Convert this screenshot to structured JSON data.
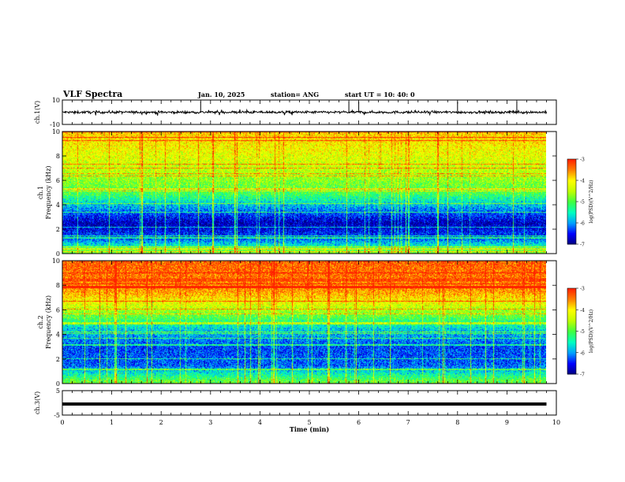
{
  "header": {
    "title": "VLF Spectra",
    "date": "Jan. 10, 2025",
    "station": "station= ANG",
    "start": "start  UT  =   10: 40: 0"
  },
  "colors": {
    "colorscale": [
      "#000080",
      "#0000ff",
      "#00a0ff",
      "#00ffc0",
      "#40ff40",
      "#c0ff00",
      "#ffff00",
      "#ff8000",
      "#ff2000",
      "#ffffff"
    ]
  },
  "chart_data": [
    {
      "type": "line",
      "id": "ch1-waveform",
      "ylabel": "ch.1(V)",
      "yticks": [
        "10",
        "-10"
      ],
      "ylim": [
        -10,
        10
      ],
      "xlim": [
        0,
        10
      ],
      "series": [
        {
          "x": [
            0,
            9.8
          ],
          "y": [
            0,
            0
          ]
        }
      ],
      "note_spikes_x": [
        2.8,
        5.8,
        6.0,
        8.0,
        9.2
      ]
    },
    {
      "type": "heatmap",
      "id": "ch1-spectrogram",
      "ylabel": "ch.1\nFrequency (kHz)",
      "yticks": [
        "0",
        "2",
        "4",
        "6",
        "8",
        "10"
      ],
      "ylim": [
        0,
        10
      ],
      "xlim": [
        0,
        10
      ],
      "data_xmax": 9.8,
      "colorbar": {
        "label": "log(PSD)(V^2/Hz)",
        "ticks": [
          "-3",
          "-4",
          "-5",
          "-6",
          "-7"
        ],
        "range": [
          -7,
          -3
        ]
      },
      "band_levels_kHz": [
        {
          "f": 0.25,
          "v": -4.8
        },
        {
          "f": 0.75,
          "v": -5.6
        },
        {
          "f": 1.25,
          "v": -6.2
        },
        {
          "f": 2.5,
          "v": -6.8
        },
        {
          "f": 4.0,
          "v": -5.8
        },
        {
          "f": 5.0,
          "v": -5.0
        },
        {
          "f": 6.0,
          "v": -4.7
        },
        {
          "f": 7.0,
          "v": -4.4
        },
        {
          "f": 8.0,
          "v": -4.2
        },
        {
          "f": 9.0,
          "v": -4.0
        },
        {
          "f": 10.0,
          "v": -3.8
        }
      ]
    },
    {
      "type": "heatmap",
      "id": "ch2-spectrogram",
      "ylabel": "ch.2\nFrequency (kHz)",
      "yticks": [
        "0",
        "2",
        "4",
        "6",
        "8",
        "10"
      ],
      "ylim": [
        0,
        10
      ],
      "xlim": [
        0,
        10
      ],
      "data_xmax": 9.8,
      "colorbar": {
        "label": "log(PSD)(V^2/Hz)",
        "ticks": [
          "-3",
          "-4",
          "-5",
          "-6",
          "-7"
        ],
        "range": [
          -7,
          -3
        ]
      },
      "band_levels_kHz": [
        {
          "f": 0.25,
          "v": -4.9
        },
        {
          "f": 0.75,
          "v": -5.4
        },
        {
          "f": 1.5,
          "v": -6.2
        },
        {
          "f": 3.0,
          "v": -6.3
        },
        {
          "f": 4.5,
          "v": -5.7
        },
        {
          "f": 5.5,
          "v": -4.9
        },
        {
          "f": 6.5,
          "v": -4.2
        },
        {
          "f": 7.5,
          "v": -3.6
        },
        {
          "f": 8.5,
          "v": -3.4
        },
        {
          "f": 10.0,
          "v": -3.3
        }
      ]
    },
    {
      "type": "line",
      "id": "ch3-waveform",
      "ylabel": "ch.3(V)",
      "yticks": [
        "5",
        "-5"
      ],
      "ylim": [
        -5,
        5
      ],
      "xlim": [
        0,
        10
      ],
      "xlabel": "Time (min)",
      "xticks": [
        "0",
        "1",
        "2",
        "3",
        "4",
        "5",
        "6",
        "7",
        "8",
        "9",
        "10"
      ],
      "series": [
        {
          "x": [
            0,
            9.8
          ],
          "y": [
            -0.5,
            -0.5
          ]
        }
      ]
    }
  ]
}
